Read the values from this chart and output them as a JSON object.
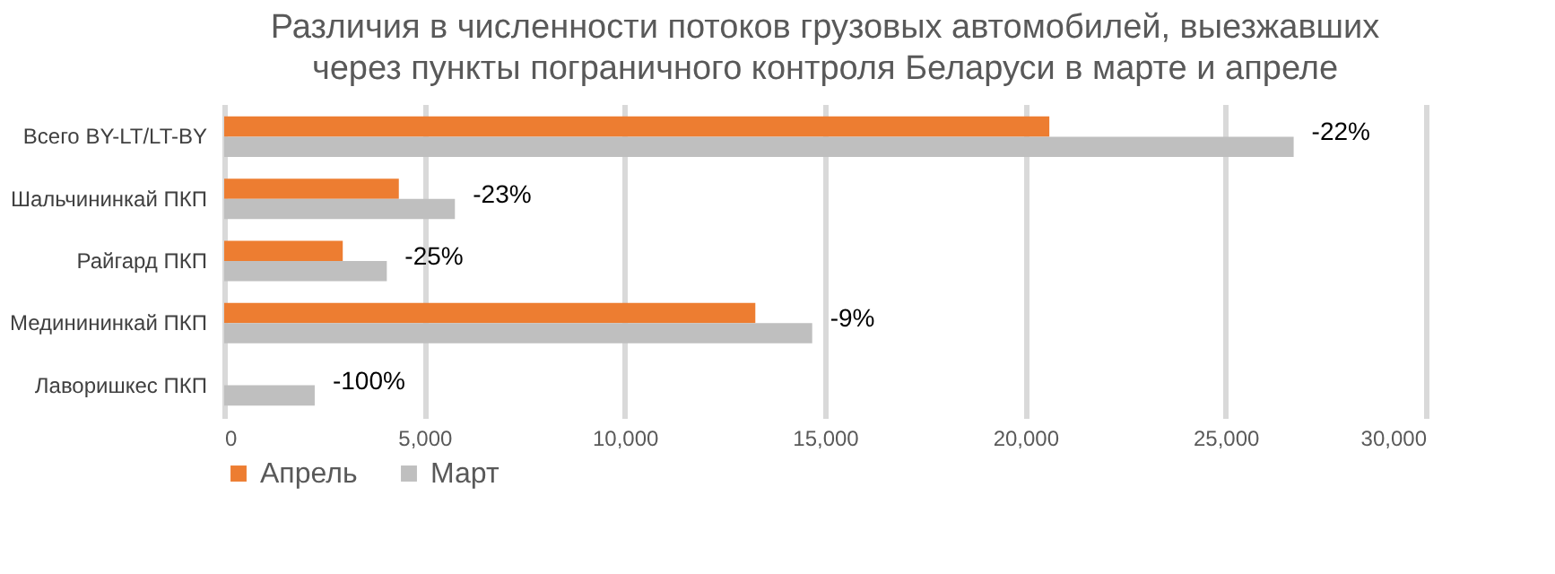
{
  "chart_data": {
    "type": "bar",
    "orientation": "horizontal",
    "title": "Различия в численности потоков грузовых автомобилей, выезжавших через пункты пограничного контроля Беларуси в марте и апреле",
    "categories": [
      "Всего BY-LT/LT-BY",
      "Шальчининкай ПКП",
      "Райгард ПКП",
      "Мединининкай ПКП",
      "Лаворишкес ПКП"
    ],
    "series": [
      {
        "name": "Апрель",
        "color": "#ed7d31",
        "values": [
          20600,
          4360,
          2960,
          13260,
          0
        ]
      },
      {
        "name": "Март",
        "color": "#bfbfbf",
        "values": [
          26700,
          5760,
          4060,
          14680,
          2260
        ]
      }
    ],
    "xlim": [
      0,
      30000
    ],
    "xticks": [
      {
        "value": 0,
        "label": "0"
      },
      {
        "value": 5000,
        "label": "5,000"
      },
      {
        "value": 10000,
        "label": "10,000"
      },
      {
        "value": 15000,
        "label": "15,000"
      },
      {
        "value": 20000,
        "label": "20,000"
      },
      {
        "value": 25000,
        "label": "25,000"
      },
      {
        "value": 30000,
        "label": "30,000"
      }
    ],
    "annotations": [
      {
        "text": "-22%",
        "x": 26700,
        "y": "Всего BY-LT/LT-BY"
      },
      {
        "text": "-23%",
        "x": 5760,
        "y": "Шальчининкай ПКП"
      },
      {
        "text": "-25%",
        "x": 4060,
        "y": "Райгард ПКП"
      },
      {
        "text": "-9%",
        "x": 14680,
        "y": "Мединининкай ПКП"
      },
      {
        "text": "-100%",
        "x": 2260,
        "y": "Лаворишкес ПКП"
      }
    ],
    "grid": "x",
    "legend": "bottom"
  }
}
